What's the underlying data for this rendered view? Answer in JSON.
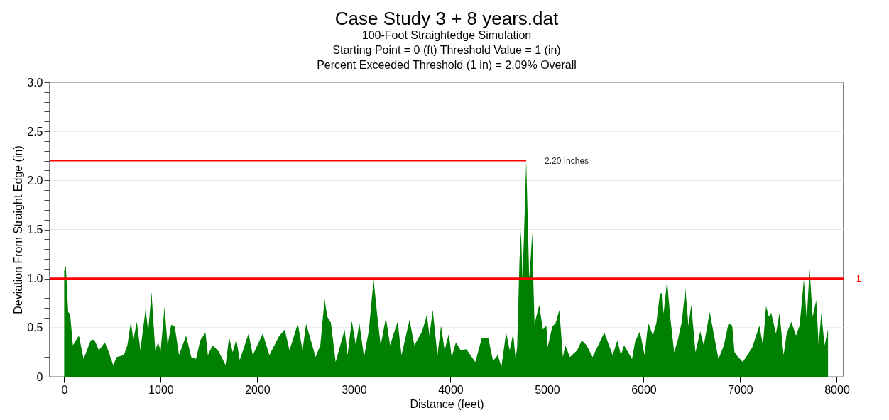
{
  "chart_data": {
    "type": "area",
    "title": "Case Study 3 + 8 years.dat",
    "subtitle": "100-Foot Straightedge Simulation\nStarting Point = 0 (ft)     Threshold Value = 1 (in)\nPercent Exceeded Threshold (1 in) = 2.09% Overall",
    "xlabel": "Distance (feet)",
    "ylabel": "Deviation From Straight Edge (in)",
    "color": "#008000",
    "x": [
      0,
      17,
      41,
      61,
      90,
      152,
      201,
      274,
      311,
      360,
      421,
      458,
      507,
      544,
      618,
      654,
      691,
      716,
      752,
      789,
      843,
      870,
      904,
      943,
      973,
      998,
      1039,
      1071,
      1108,
      1145,
      1189,
      1262,
      1316,
      1365,
      1409,
      1463,
      1488,
      1537,
      1598,
      1671,
      1708,
      1745,
      1782,
      1818,
      1909,
      1953,
      2056,
      2125,
      2223,
      2284,
      2333,
      2419,
      2468,
      2505,
      2603,
      2652,
      2696,
      2725,
      2762,
      2811,
      2904,
      2934,
      2978,
      3020,
      3056,
      3105,
      3154,
      3204,
      3240,
      3277,
      3331,
      3375,
      3412,
      3453,
      3493,
      3576,
      3626,
      3706,
      3755,
      3782,
      3816,
      3865,
      3902,
      3939,
      3983,
      4012,
      4056,
      4106,
      4164,
      4257,
      4326,
      4392,
      4441,
      4490,
      4527,
      4576,
      4613,
      4649,
      4674,
      4690,
      4715,
      4730,
      4745,
      4760,
      4784,
      4800,
      4815,
      4830,
      4846,
      4860,
      4870,
      4919,
      4956,
      4993,
      5005,
      5054,
      5090,
      5127,
      5164,
      5188,
      5237,
      5311,
      5360,
      5409,
      5471,
      5544,
      5593,
      5679,
      5728,
      5765,
      5797,
      5880,
      5912,
      5961,
      6010,
      6047,
      6096,
      6132,
      6169,
      6194,
      6206,
      6243,
      6272,
      6316,
      6353,
      6395,
      6432,
      6464,
      6493,
      6537,
      6586,
      6623,
      6684,
      6733,
      6775,
      6831,
      6880,
      6917,
      6941,
      6978,
      7027,
      7125,
      7199,
      7235,
      7267,
      7297,
      7321,
      7370,
      7407,
      7449,
      7481,
      7529,
      7578,
      7615,
      7659,
      7689,
      7718,
      7750,
      7787,
      7812,
      7840,
      7873,
      7909
    ],
    "values": [
      1.08,
      1.13,
      0.66,
      0.64,
      0.32,
      0.42,
      0.18,
      0.37,
      0.38,
      0.27,
      0.35,
      0.26,
      0.12,
      0.2,
      0.22,
      0.32,
      0.56,
      0.37,
      0.56,
      0.27,
      0.69,
      0.46,
      0.86,
      0.27,
      0.35,
      0.26,
      0.71,
      0.32,
      0.53,
      0.51,
      0.22,
      0.42,
      0.2,
      0.18,
      0.37,
      0.45,
      0.22,
      0.32,
      0.26,
      0.12,
      0.4,
      0.25,
      0.38,
      0.17,
      0.44,
      0.22,
      0.44,
      0.22,
      0.41,
      0.48,
      0.27,
      0.54,
      0.27,
      0.54,
      0.2,
      0.32,
      0.79,
      0.61,
      0.55,
      0.15,
      0.48,
      0.22,
      0.57,
      0.32,
      0.55,
      0.2,
      0.47,
      0.99,
      0.64,
      0.32,
      0.6,
      0.32,
      0.44,
      0.56,
      0.22,
      0.58,
      0.32,
      0.46,
      0.63,
      0.42,
      0.68,
      0.22,
      0.52,
      0.27,
      0.44,
      0.2,
      0.35,
      0.27,
      0.28,
      0.15,
      0.4,
      0.39,
      0.16,
      0.22,
      0.1,
      0.45,
      0.27,
      0.44,
      0.18,
      0.3,
      1.2,
      1.49,
      1.0,
      1.4,
      2.2,
      1.6,
      1.0,
      1.2,
      1.47,
      0.9,
      0.54,
      0.73,
      0.48,
      0.52,
      0.3,
      0.51,
      0.55,
      0.68,
      0.2,
      0.32,
      0.2,
      0.27,
      0.37,
      0.32,
      0.2,
      0.35,
      0.45,
      0.22,
      0.37,
      0.22,
      0.32,
      0.18,
      0.36,
      0.46,
      0.22,
      0.55,
      0.42,
      0.55,
      0.85,
      0.85,
      0.64,
      0.98,
      0.64,
      0.25,
      0.37,
      0.56,
      0.9,
      0.52,
      0.73,
      0.25,
      0.46,
      0.32,
      0.66,
      0.4,
      0.18,
      0.32,
      0.55,
      0.52,
      0.25,
      0.2,
      0.15,
      0.3,
      0.52,
      0.32,
      0.72,
      0.61,
      0.65,
      0.44,
      0.65,
      0.22,
      0.44,
      0.56,
      0.42,
      0.52,
      0.99,
      0.58,
      1.1,
      0.61,
      0.78,
      0.32,
      0.65,
      0.32,
      0.48
    ],
    "xlim": [
      -150,
      8070
    ],
    "xticks": [
      0,
      1000,
      2000,
      3000,
      4000,
      5000,
      6000,
      7000,
      8000
    ],
    "ylim": [
      0,
      3
    ],
    "yticks": [
      0,
      {
        "value": 0.1,
        "label": null
      },
      {
        "value": 0.2,
        "label": null
      },
      {
        "value": 0.3,
        "label": null
      },
      {
        "value": 0.4,
        "label": null
      },
      0.5,
      {
        "value": 0.6,
        "label": null
      },
      {
        "value": 0.7,
        "label": null
      },
      {
        "value": 0.8,
        "label": null
      },
      {
        "value": 0.9,
        "label": null
      },
      {
        "value": 1,
        "label": "1.0"
      },
      {
        "value": 1.1,
        "label": null
      },
      {
        "value": 1.2,
        "label": null
      },
      {
        "value": 1.3,
        "label": null
      },
      {
        "value": 1.4,
        "label": null
      },
      1.5,
      {
        "value": 1.6,
        "label": null
      },
      {
        "value": 1.7,
        "label": null
      },
      {
        "value": 1.8,
        "label": null
      },
      {
        "value": 1.9,
        "label": null
      },
      {
        "value": 2,
        "label": "2.0"
      },
      {
        "value": 2.1,
        "label": null
      },
      {
        "value": 2.2,
        "label": null
      },
      {
        "value": 2.3,
        "label": null
      },
      {
        "value": 2.4,
        "label": null
      },
      2.5,
      {
        "value": 2.6,
        "label": null
      },
      {
        "value": 2.7,
        "label": null
      },
      {
        "value": 2.8,
        "label": null
      },
      {
        "value": 2.9,
        "label": null
      },
      {
        "value": 3,
        "label": "3.0"
      }
    ],
    "grid": "y",
    "ref_lines": [
      {
        "axis": "y",
        "value": 1,
        "label": "1",
        "color": "#ff0000"
      },
      {
        "axis": "y",
        "value": 2.2,
        "label": "2.20 Inches",
        "color": "#ff0000"
      }
    ]
  }
}
